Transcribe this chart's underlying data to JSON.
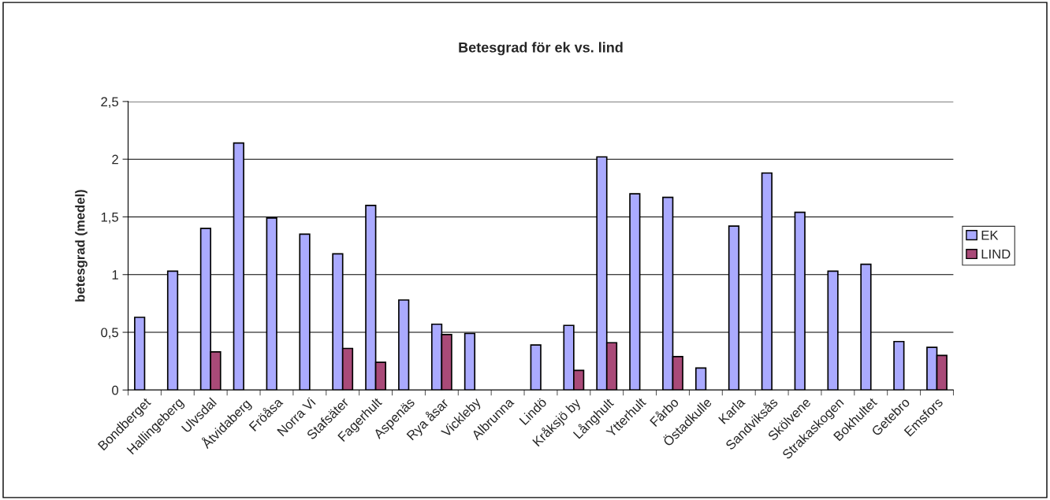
{
  "chart_data": {
    "type": "bar",
    "title": "Betesgrad för ek vs. lind",
    "ylabel": "betesgrad (medel)",
    "categories": [
      "Bondberget",
      "Hallingeberg",
      "Ulvsdal",
      "Åtvidaberg",
      "Fröåsa",
      "Norra Vi",
      "Stafsäter",
      "Fagerhult",
      "Aspenäs",
      "Rya åsar",
      "Vickleby",
      "Albrunna",
      "Lindö",
      "Kråksjö by",
      "Långhult",
      "Ytterhult",
      "Fårbo",
      "Östadkulle",
      "Karla",
      "Sandviksås",
      "Skölvene",
      "Strakaskogen",
      "Bokhultet",
      "Getebro",
      "Emsfors"
    ],
    "series": [
      {
        "name": "EK",
        "color": "#aaaaff",
        "values": [
          0.63,
          1.03,
          1.4,
          2.14,
          1.49,
          1.35,
          1.18,
          1.6,
          0.78,
          0.57,
          0.49,
          null,
          0.39,
          0.56,
          2.02,
          1.7,
          1.67,
          0.19,
          1.42,
          1.88,
          1.54,
          1.03,
          1.09,
          0.42,
          0.37
        ]
      },
      {
        "name": "LIND",
        "color": "#a94a78",
        "values": [
          null,
          null,
          0.33,
          null,
          null,
          null,
          0.36,
          0.24,
          null,
          0.48,
          null,
          null,
          null,
          0.17,
          0.41,
          null,
          0.29,
          null,
          null,
          null,
          null,
          null,
          null,
          null,
          0.3
        ]
      }
    ],
    "ylim": [
      0,
      2.5
    ],
    "yticks": [
      0,
      {
        "value": 0.5,
        "label": "0,5"
      },
      1,
      {
        "value": 1.5,
        "label": "1,5"
      },
      2,
      {
        "value": 2.5,
        "label": "2,5"
      }
    ],
    "grid": "y",
    "legend": "right"
  }
}
